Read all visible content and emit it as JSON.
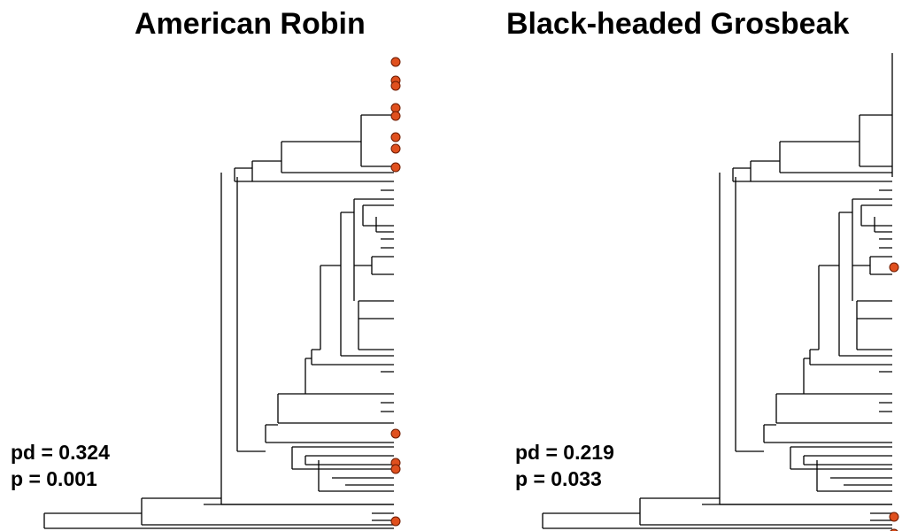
{
  "panels": [
    {
      "title": "American Robin",
      "pd_label": "pd = 0.324",
      "p_label": "p = 0.001"
    },
    {
      "title": "Black-headed Grosbeak",
      "pd_label": "pd = 0.219",
      "p_label": "p = 0.033"
    }
  ],
  "colors": {
    "tip_marker": "#e0501e",
    "tip_marker_outline": "#6b1a00",
    "branch": "#000000"
  }
}
